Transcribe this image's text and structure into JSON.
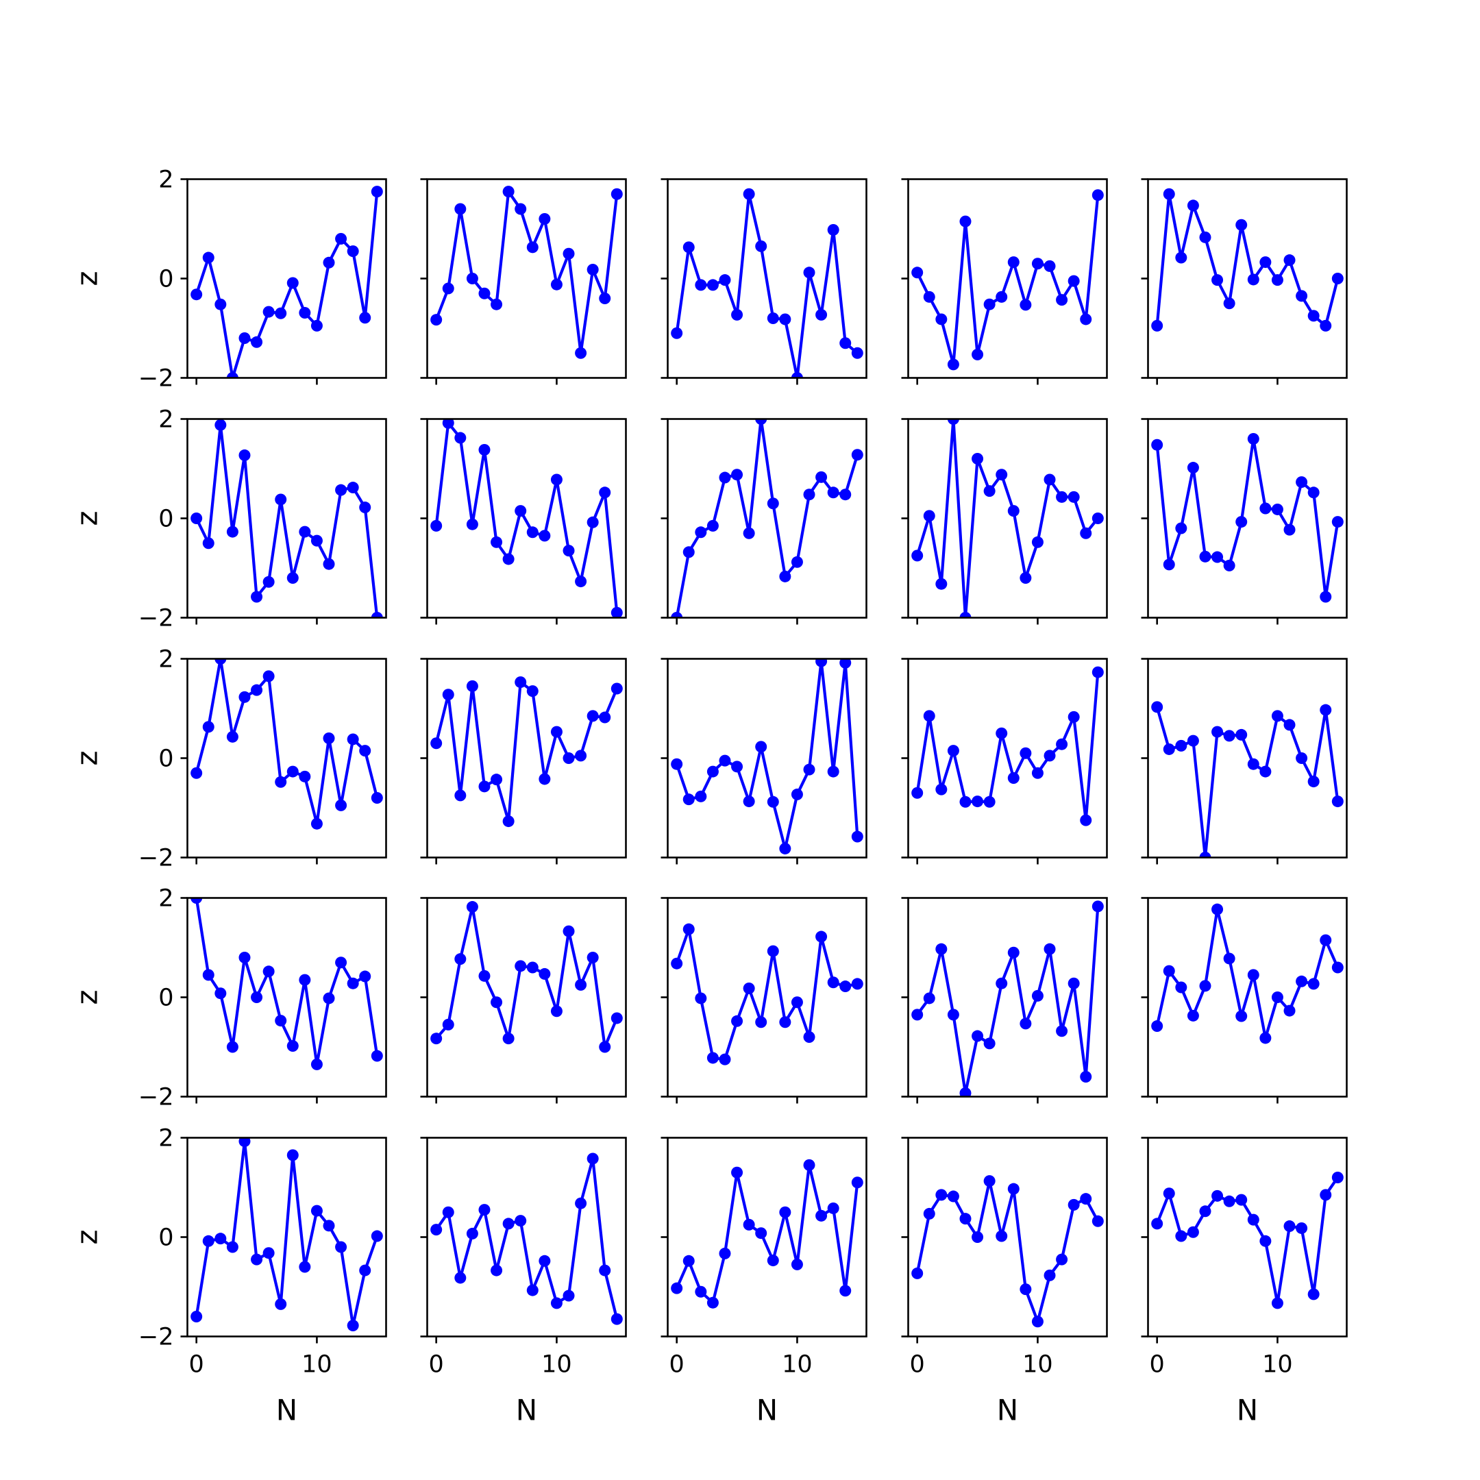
{
  "chart_data": {
    "type": "line",
    "layout": "5x5 grid of small-multiple line plots with shared axes",
    "xlabel": "N",
    "ylabel": "z",
    "xlim": [
      -0.75,
      15.75
    ],
    "ylim": [
      -2,
      2
    ],
    "xticks": [
      0,
      10
    ],
    "xtick_labels": [
      "0",
      "10"
    ],
    "yticks": [
      -2,
      0,
      2
    ],
    "ytick_labels": [
      "−2",
      "0",
      "2"
    ],
    "grid": false,
    "legend": "none",
    "line_color": "#0000ff",
    "x": [
      0,
      1,
      2,
      3,
      4,
      5,
      6,
      7,
      8,
      9,
      10,
      11,
      12,
      13,
      14,
      15
    ],
    "panels": [
      [
        -0.32,
        0.42,
        -0.52,
        -2.0,
        -1.2,
        -1.28,
        -0.67,
        -0.7,
        -0.09,
        -0.69,
        -0.95,
        0.32,
        0.8,
        0.55,
        -0.79,
        1.75
      ],
      [
        -0.83,
        -0.2,
        1.4,
        0.0,
        -0.3,
        -0.52,
        1.75,
        1.4,
        0.63,
        1.2,
        -0.12,
        0.5,
        -1.5,
        0.18,
        -0.4,
        1.7
      ],
      [
        -1.1,
        0.63,
        -0.13,
        -0.13,
        -0.03,
        -0.73,
        1.7,
        0.65,
        -0.8,
        -0.82,
        -2.0,
        0.12,
        -0.73,
        0.98,
        -1.3,
        -1.5
      ],
      [
        0.12,
        -0.37,
        -0.82,
        -1.73,
        1.15,
        -1.53,
        -0.52,
        -0.37,
        0.33,
        -0.53,
        0.3,
        0.25,
        -0.43,
        -0.05,
        -0.82,
        1.68
      ],
      [
        -0.95,
        1.7,
        0.42,
        1.47,
        0.83,
        -0.03,
        -0.5,
        1.08,
        -0.02,
        0.33,
        -0.03,
        0.37,
        -0.35,
        -0.75,
        -0.95,
        0.0
      ],
      [
        0.0,
        -0.5,
        1.88,
        -0.27,
        1.27,
        -1.58,
        -1.28,
        0.38,
        -1.2,
        -0.27,
        -0.45,
        -0.92,
        0.57,
        0.62,
        0.22,
        -2.0
      ],
      [
        -0.15,
        1.92,
        1.62,
        -0.12,
        1.38,
        -0.48,
        -0.82,
        0.15,
        -0.28,
        -0.35,
        0.78,
        -0.65,
        -1.27,
        -0.08,
        0.52,
        -1.9
      ],
      [
        -2.0,
        -0.68,
        -0.28,
        -0.15,
        0.82,
        0.88,
        -0.3,
        2.0,
        0.3,
        -1.17,
        -0.88,
        0.48,
        0.83,
        0.52,
        0.48,
        1.28
      ],
      [
        -0.75,
        0.05,
        -1.32,
        2.0,
        -2.0,
        1.2,
        0.55,
        0.88,
        0.15,
        -1.2,
        -0.48,
        0.78,
        0.43,
        0.43,
        -0.3,
        0.0
      ],
      [
        1.48,
        -0.93,
        -0.2,
        1.02,
        -0.77,
        -0.78,
        -0.95,
        -0.07,
        1.6,
        0.2,
        0.18,
        -0.23,
        0.73,
        0.52,
        -1.58,
        -0.07
      ],
      [
        -0.3,
        0.63,
        2.0,
        0.43,
        1.23,
        1.37,
        1.65,
        -0.48,
        -0.27,
        -0.37,
        -1.32,
        0.4,
        -0.95,
        0.38,
        0.15,
        -0.8
      ],
      [
        0.3,
        1.28,
        -0.75,
        1.45,
        -0.57,
        -0.43,
        -1.27,
        1.53,
        1.35,
        -0.42,
        0.53,
        0.0,
        0.05,
        0.85,
        0.82,
        1.4
      ],
      [
        -0.12,
        -0.83,
        -0.77,
        -0.27,
        -0.05,
        -0.17,
        -0.87,
        0.23,
        -0.88,
        -1.82,
        -0.73,
        -0.23,
        1.95,
        -0.27,
        1.92,
        -1.58
      ],
      [
        -0.7,
        0.85,
        -0.63,
        0.15,
        -0.88,
        -0.87,
        -0.88,
        0.5,
        -0.4,
        0.1,
        -0.3,
        0.05,
        0.28,
        0.83,
        -1.25,
        1.73
      ],
      [
        1.03,
        0.18,
        0.25,
        0.35,
        -2.0,
        0.53,
        0.45,
        0.47,
        -0.12,
        -0.27,
        0.85,
        0.67,
        0.0,
        -0.47,
        0.97,
        -0.87
      ],
      [
        2.0,
        0.45,
        0.08,
        -1.0,
        0.8,
        0.0,
        0.52,
        -0.47,
        -0.98,
        0.35,
        -1.35,
        -0.02,
        0.7,
        0.28,
        0.42,
        -1.18
      ],
      [
        -0.83,
        -0.55,
        0.77,
        1.82,
        0.43,
        -0.1,
        -0.83,
        0.63,
        0.6,
        0.47,
        -0.28,
        1.33,
        0.25,
        0.8,
        -1.0,
        -0.42
      ],
      [
        0.68,
        1.37,
        -0.02,
        -1.22,
        -1.25,
        -0.48,
        0.18,
        -0.5,
        0.93,
        -0.5,
        -0.1,
        -0.8,
        1.22,
        0.3,
        0.22,
        0.27
      ],
      [
        -0.35,
        -0.02,
        0.97,
        -0.35,
        -1.93,
        -0.78,
        -0.93,
        0.28,
        0.9,
        -0.53,
        0.03,
        0.97,
        -0.68,
        0.28,
        -1.6,
        1.83
      ],
      [
        -0.58,
        0.53,
        0.2,
        -0.37,
        0.23,
        1.77,
        0.78,
        -0.38,
        0.45,
        -0.82,
        0.0,
        -0.27,
        0.32,
        0.27,
        1.15,
        0.6
      ],
      [
        -1.6,
        -0.08,
        -0.03,
        -0.2,
        1.93,
        -0.45,
        -0.32,
        -1.35,
        1.65,
        -0.6,
        0.53,
        0.23,
        -0.2,
        -1.78,
        -0.67,
        0.02
      ],
      [
        0.15,
        0.5,
        -0.82,
        0.07,
        0.55,
        -0.67,
        0.27,
        0.33,
        -1.07,
        -0.48,
        -1.33,
        -1.18,
        0.68,
        1.58,
        -0.67,
        -1.65
      ],
      [
        -1.03,
        -0.48,
        -1.1,
        -1.32,
        -0.33,
        1.3,
        0.25,
        0.08,
        -0.47,
        0.5,
        -0.55,
        1.45,
        0.43,
        0.58,
        -1.08,
        1.1
      ],
      [
        -0.73,
        0.47,
        0.85,
        0.82,
        0.37,
        0.0,
        1.13,
        0.02,
        0.97,
        -1.05,
        -1.7,
        -0.77,
        -0.45,
        0.65,
        0.77,
        0.32
      ],
      [
        0.27,
        0.88,
        0.02,
        0.1,
        0.52,
        0.83,
        0.72,
        0.75,
        0.35,
        -0.08,
        -1.33,
        0.22,
        0.18,
        -1.15,
        0.85,
        1.2
      ]
    ]
  }
}
